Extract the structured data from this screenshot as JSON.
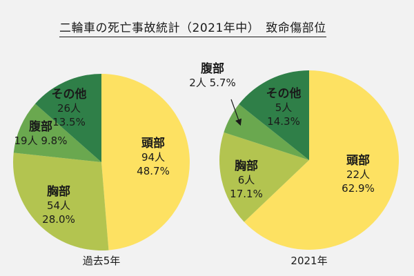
{
  "title": "二輪車の死亡事故統計（2021年中）　致命傷部位",
  "chart_data": [
    {
      "type": "pie",
      "label": "過去5年",
      "slices": [
        {
          "name": "頭部",
          "count": "94人",
          "percent": 48.7,
          "percent_label": "48.7%",
          "color": "#fde162"
        },
        {
          "name": "胸部",
          "count": "54人",
          "percent": 28.0,
          "percent_label": "28.0%",
          "color": "#b3c450"
        },
        {
          "name": "腹部",
          "count": "19人",
          "percent": 9.8,
          "percent_label": "9.8%",
          "color": "#6aa84f"
        },
        {
          "name": "その他",
          "count": "26人",
          "percent": 13.5,
          "percent_label": "13.5%",
          "color": "#2f7f48"
        }
      ]
    },
    {
      "type": "pie",
      "label": "2021年",
      "slices": [
        {
          "name": "頭部",
          "count": "22人",
          "percent": 62.9,
          "percent_label": "62.9%",
          "color": "#fde162"
        },
        {
          "name": "胸部",
          "count": "6人",
          "percent": 17.1,
          "percent_label": "17.1%",
          "color": "#b3c450"
        },
        {
          "name": "腹部",
          "count": "2人",
          "percent": 5.7,
          "percent_label": "5.7%",
          "color": "#6aa84f"
        },
        {
          "name": "その他",
          "count": "5人",
          "percent": 14.3,
          "percent_label": "14.3%",
          "color": "#2f7f48"
        }
      ]
    }
  ]
}
